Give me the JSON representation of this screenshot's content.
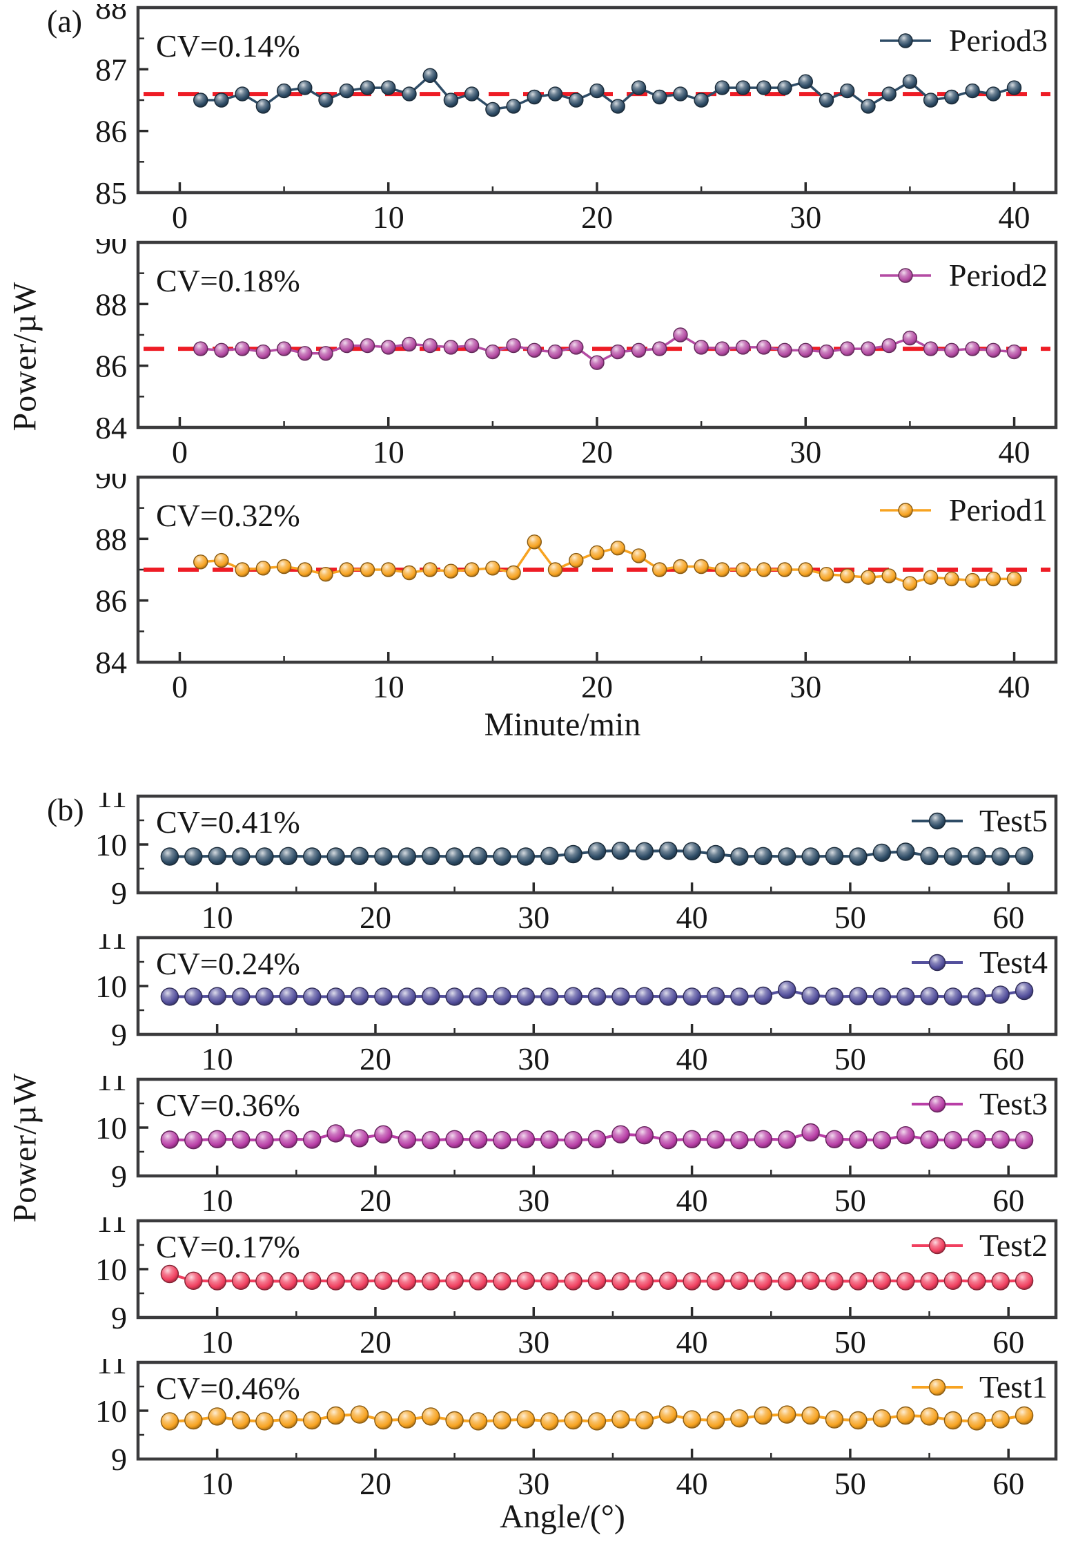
{
  "figure": {
    "panel_a_label": "(a)",
    "panel_b_label": "(b)",
    "ylabel": "Power/µW",
    "frame_color": "#3b3b3d",
    "text_color": "#161616",
    "mean_line_color": "#ee1c25"
  },
  "chart_data": [
    {
      "type": "line",
      "panel": "a",
      "xlabel": "Minute/min",
      "ylabel": "Power/µW",
      "xlim": [
        -2,
        42
      ],
      "xticks": [
        0,
        10,
        20,
        30,
        40
      ],
      "xminor": [
        5,
        15,
        25,
        35
      ],
      "grid": false,
      "legend_position": "top-right-inside",
      "subplots": [
        {
          "legend": "Period3",
          "cv": "CV=0.14%",
          "color": "#2e4c66",
          "ylim": [
            85,
            88
          ],
          "yticks": [
            85,
            86,
            87,
            88
          ],
          "yminor": [
            85.5,
            86.5,
            87.5
          ],
          "mean": 86.6,
          "x": [
            1,
            2,
            3,
            4,
            5,
            6,
            7,
            8,
            9,
            10,
            11,
            12,
            13,
            14,
            15,
            16,
            17,
            18,
            19,
            20,
            21,
            22,
            23,
            24,
            25,
            26,
            27,
            28,
            29,
            30,
            31,
            32,
            33,
            34,
            35,
            36,
            37,
            38,
            39,
            40
          ],
          "y": [
            86.5,
            86.5,
            86.6,
            86.4,
            86.65,
            86.7,
            86.5,
            86.65,
            86.7,
            86.7,
            86.6,
            86.9,
            86.5,
            86.6,
            86.35,
            86.4,
            86.55,
            86.6,
            86.5,
            86.65,
            86.4,
            86.7,
            86.55,
            86.6,
            86.5,
            86.7,
            86.7,
            86.7,
            86.7,
            86.8,
            86.5,
            86.65,
            86.4,
            86.6,
            86.8,
            86.5,
            86.55,
            86.65,
            86.6,
            86.7
          ]
        },
        {
          "legend": "Period2",
          "cv": "CV=0.18%",
          "color": "#b44ba3",
          "ylim": [
            84,
            90
          ],
          "yticks": [
            84,
            86,
            88,
            90
          ],
          "yminor": [
            85,
            87,
            89
          ],
          "mean": 86.55,
          "x": [
            1,
            2,
            3,
            4,
            5,
            6,
            7,
            8,
            9,
            10,
            11,
            12,
            13,
            14,
            15,
            16,
            17,
            18,
            19,
            20,
            21,
            22,
            23,
            24,
            25,
            26,
            27,
            28,
            29,
            30,
            31,
            32,
            33,
            34,
            35,
            36,
            37,
            38,
            39,
            40
          ],
          "y": [
            86.55,
            86.5,
            86.55,
            86.45,
            86.55,
            86.4,
            86.4,
            86.65,
            86.65,
            86.6,
            86.7,
            86.65,
            86.6,
            86.65,
            86.45,
            86.65,
            86.5,
            86.45,
            86.6,
            86.1,
            86.45,
            86.5,
            86.55,
            87.0,
            86.6,
            86.55,
            86.6,
            86.6,
            86.5,
            86.5,
            86.45,
            86.55,
            86.55,
            86.65,
            86.9,
            86.55,
            86.5,
            86.55,
            86.5,
            86.45
          ]
        },
        {
          "legend": "Period1",
          "cv": "CV=0.32%",
          "color": "#f7a321",
          "ylim": [
            84,
            90
          ],
          "yticks": [
            84,
            86,
            88,
            90
          ],
          "yminor": [
            85,
            87,
            89
          ],
          "mean": 87.0,
          "x": [
            1,
            2,
            3,
            4,
            5,
            6,
            7,
            8,
            9,
            10,
            11,
            12,
            13,
            14,
            15,
            16,
            17,
            18,
            19,
            20,
            21,
            22,
            23,
            24,
            25,
            26,
            27,
            28,
            29,
            30,
            31,
            32,
            33,
            34,
            35,
            36,
            37,
            38,
            39,
            40
          ],
          "y": [
            87.25,
            87.3,
            87.0,
            87.05,
            87.1,
            87.0,
            86.85,
            87.0,
            87.0,
            87.0,
            86.9,
            87.0,
            86.95,
            87.0,
            87.05,
            86.9,
            87.9,
            87.0,
            87.3,
            87.55,
            87.7,
            87.45,
            87.0,
            87.1,
            87.1,
            87.0,
            87.0,
            87.0,
            87.0,
            87.0,
            86.85,
            86.8,
            86.75,
            86.8,
            86.55,
            86.75,
            86.7,
            86.65,
            86.7,
            86.7
          ]
        }
      ]
    },
    {
      "type": "line",
      "panel": "b",
      "xlabel": "Angle/(°)",
      "ylabel": "Power/µW",
      "xlim": [
        5,
        63
      ],
      "xticks": [
        10,
        20,
        30,
        40,
        50,
        60
      ],
      "xminor": [
        15,
        25,
        35,
        45,
        55
      ],
      "grid": false,
      "legend_position": "top-right-inside",
      "subplots": [
        {
          "legend": "Test5",
          "cv": "CV=0.41%",
          "color": "#2e4c66",
          "ylim": [
            9,
            11
          ],
          "yticks": [
            9,
            10,
            11
          ],
          "yminor": [
            9.5,
            10.5
          ],
          "x": [
            7,
            8.5,
            10,
            11.5,
            13,
            14.5,
            16,
            17.5,
            19,
            20.5,
            22,
            23.5,
            25,
            26.5,
            28,
            29.5,
            31,
            32.5,
            34,
            35.5,
            37,
            38.5,
            40,
            41.5,
            43,
            44.5,
            46,
            47.5,
            49,
            50.5,
            52,
            53.5,
            55,
            56.5,
            58,
            59.5,
            61
          ],
          "y": [
            9.75,
            9.75,
            9.76,
            9.75,
            9.75,
            9.76,
            9.75,
            9.75,
            9.76,
            9.75,
            9.75,
            9.76,
            9.75,
            9.76,
            9.75,
            9.75,
            9.76,
            9.8,
            9.86,
            9.87,
            9.86,
            9.87,
            9.86,
            9.8,
            9.75,
            9.76,
            9.75,
            9.75,
            9.76,
            9.75,
            9.83,
            9.85,
            9.76,
            9.75,
            9.76,
            9.75,
            9.76
          ]
        },
        {
          "legend": "Test4",
          "cv": "CV=0.24%",
          "color": "#534f9c",
          "ylim": [
            9,
            11
          ],
          "yticks": [
            9,
            10,
            11
          ],
          "yminor": [
            9.5,
            10.5
          ],
          "x": [
            7,
            8.5,
            10,
            11.5,
            13,
            14.5,
            16,
            17.5,
            19,
            20.5,
            22,
            23.5,
            25,
            26.5,
            28,
            29.5,
            31,
            32.5,
            34,
            35.5,
            37,
            38.5,
            40,
            41.5,
            43,
            44.5,
            46,
            47.5,
            49,
            50.5,
            52,
            53.5,
            55,
            56.5,
            58,
            59.5,
            61
          ],
          "y": [
            9.78,
            9.78,
            9.79,
            9.78,
            9.78,
            9.79,
            9.78,
            9.78,
            9.79,
            9.78,
            9.78,
            9.79,
            9.78,
            9.78,
            9.79,
            9.78,
            9.78,
            9.79,
            9.78,
            9.78,
            9.79,
            9.78,
            9.78,
            9.79,
            9.78,
            9.8,
            9.92,
            9.8,
            9.78,
            9.79,
            9.78,
            9.78,
            9.79,
            9.78,
            9.78,
            9.82,
            9.9
          ]
        },
        {
          "legend": "Test3",
          "cv": "CV=0.36%",
          "color": "#b83ea6",
          "ylim": [
            9,
            11
          ],
          "yticks": [
            9,
            10,
            11
          ],
          "yminor": [
            9.5,
            10.5
          ],
          "x": [
            7,
            8.5,
            10,
            11.5,
            13,
            14.5,
            16,
            17.5,
            19,
            20.5,
            22,
            23.5,
            25,
            26.5,
            28,
            29.5,
            31,
            32.5,
            34,
            35.5,
            37,
            38.5,
            40,
            41.5,
            43,
            44.5,
            46,
            47.5,
            49,
            50.5,
            52,
            53.5,
            55,
            56.5,
            58,
            59.5,
            61
          ],
          "y": [
            9.75,
            9.74,
            9.76,
            9.75,
            9.74,
            9.76,
            9.75,
            9.88,
            9.78,
            9.86,
            9.75,
            9.74,
            9.76,
            9.75,
            9.74,
            9.76,
            9.75,
            9.74,
            9.76,
            9.86,
            9.84,
            9.74,
            9.76,
            9.75,
            9.74,
            9.76,
            9.75,
            9.9,
            9.76,
            9.75,
            9.74,
            9.84,
            9.75,
            9.74,
            9.76,
            9.75,
            9.74
          ]
        },
        {
          "legend": "Test2",
          "cv": "CV=0.17%",
          "color": "#f03f5f",
          "ylim": [
            9,
            11
          ],
          "yticks": [
            9,
            10,
            11
          ],
          "yminor": [
            9.5,
            10.5
          ],
          "x": [
            7,
            8.5,
            10,
            11.5,
            13,
            14.5,
            16,
            17.5,
            19,
            20.5,
            22,
            23.5,
            25,
            26.5,
            28,
            29.5,
            31,
            32.5,
            34,
            35.5,
            37,
            38.5,
            40,
            41.5,
            43,
            44.5,
            46,
            47.5,
            49,
            50.5,
            52,
            53.5,
            55,
            56.5,
            58,
            59.5,
            61
          ],
          "y": [
            9.9,
            9.76,
            9.75,
            9.76,
            9.75,
            9.75,
            9.76,
            9.75,
            9.75,
            9.76,
            9.75,
            9.75,
            9.76,
            9.75,
            9.75,
            9.76,
            9.75,
            9.75,
            9.76,
            9.75,
            9.75,
            9.76,
            9.75,
            9.75,
            9.76,
            9.75,
            9.75,
            9.76,
            9.75,
            9.75,
            9.76,
            9.75,
            9.75,
            9.76,
            9.75,
            9.75,
            9.76
          ]
        },
        {
          "legend": "Test1",
          "cv": "CV=0.46%",
          "color": "#f7a321",
          "ylim": [
            9,
            11
          ],
          "yticks": [
            9,
            10,
            11
          ],
          "yminor": [
            9.5,
            10.5
          ],
          "x": [
            7,
            8.5,
            10,
            11.5,
            13,
            14.5,
            16,
            17.5,
            19,
            20.5,
            22,
            23.5,
            25,
            26.5,
            28,
            29.5,
            31,
            32.5,
            34,
            35.5,
            37,
            38.5,
            40,
            41.5,
            43,
            44.5,
            46,
            47.5,
            49,
            50.5,
            52,
            53.5,
            55,
            56.5,
            58,
            59.5,
            61
          ],
          "y": [
            9.78,
            9.8,
            9.88,
            9.8,
            9.78,
            9.82,
            9.8,
            9.9,
            9.92,
            9.8,
            9.82,
            9.88,
            9.8,
            9.78,
            9.8,
            9.82,
            9.78,
            9.8,
            9.78,
            9.82,
            9.8,
            9.92,
            9.82,
            9.8,
            9.84,
            9.9,
            9.92,
            9.9,
            9.82,
            9.8,
            9.84,
            9.9,
            9.88,
            9.8,
            9.78,
            9.82,
            9.9
          ]
        }
      ]
    }
  ]
}
